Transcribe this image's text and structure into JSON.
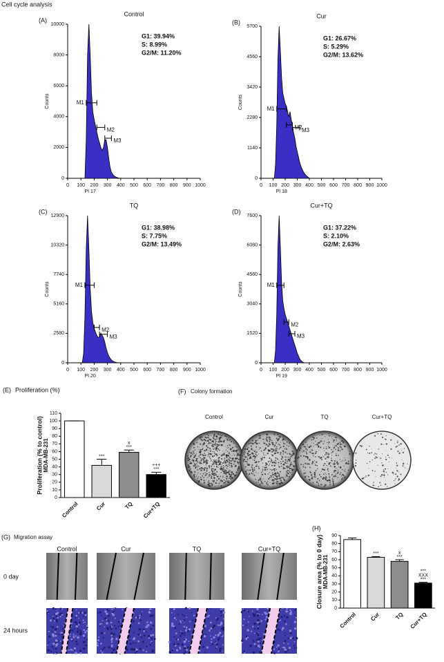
{
  "title": "Cell cycle analysis",
  "chart_data": [
    {
      "type": "area",
      "panel": "(A)",
      "title": "Control",
      "xlabel": "PI 17",
      "ylabel": "Counts",
      "stats": [
        "G1: 39.94%",
        "S: 8.99%",
        "G2/M: 11.20%"
      ],
      "color": "#3a2fc4",
      "x": [
        130,
        140,
        150,
        160,
        170,
        180,
        190,
        200,
        210,
        220,
        230,
        240,
        250,
        260,
        270,
        280,
        290,
        300,
        310,
        320,
        330,
        340,
        350,
        360,
        370,
        380,
        390,
        400
      ],
      "values": [
        0,
        2500,
        8000,
        10000,
        8000,
        5500,
        4300,
        3800,
        3400,
        3000,
        2600,
        2300,
        2000,
        1800,
        2000,
        2500,
        2500,
        2000,
        1300,
        700,
        400,
        250,
        150,
        100,
        60,
        30,
        10,
        0
      ],
      "gates": [
        {
          "label": "M1",
          "xlim": [
            140,
            220
          ],
          "y": 4900
        },
        {
          "label": "M2",
          "xlim": [
            220,
            280
          ],
          "y": 3300
        },
        {
          "label": "M3",
          "xlim": [
            280,
            330
          ],
          "y": 2600
        }
      ],
      "xlim": [
        0,
        1000
      ],
      "xticks": [
        0,
        100,
        200,
        300,
        400,
        500,
        600,
        700,
        800,
        900,
        1000
      ],
      "ylim": [
        0,
        10000
      ],
      "yticks": [
        0,
        2000,
        4000,
        6000,
        8000,
        10000
      ]
    },
    {
      "type": "area",
      "panel": "(B)",
      "title": "Cur",
      "xlabel": "PI 18",
      "ylabel": "Counts",
      "stats": [
        "G1: 26.67%",
        "S: 5.29%",
        "G2/M: 13.62%"
      ],
      "color": "#3a2fc4",
      "x": [
        110,
        120,
        130,
        140,
        150,
        160,
        170,
        180,
        190,
        200,
        210,
        220,
        230,
        240,
        250,
        260,
        270,
        280,
        290,
        300,
        310,
        320,
        330,
        340,
        350,
        360,
        370,
        380,
        390,
        400
      ],
      "values": [
        0,
        500,
        2000,
        4500,
        5700,
        4800,
        3800,
        3200,
        3000,
        2800,
        2700,
        2500,
        2300,
        2500,
        2200,
        2000,
        1700,
        1500,
        1200,
        1000,
        800,
        600,
        450,
        350,
        250,
        180,
        120,
        80,
        40,
        0
      ],
      "gates": [
        {
          "label": "M1",
          "xlim": [
            130,
            210
          ],
          "y": 2600
        },
        {
          "label": "M2",
          "xlim": [
            210,
            260
          ],
          "y": 2000
        },
        {
          "label": "M3",
          "xlim": [
            260,
            320
          ],
          "y": 1900
        }
      ],
      "xlim": [
        0,
        1000
      ],
      "xticks": [
        0,
        100,
        200,
        300,
        400,
        500,
        600,
        700,
        800,
        900,
        1000
      ],
      "ylim": [
        0,
        5700
      ],
      "yticks": [
        0,
        1140,
        2280,
        3420,
        4560,
        5700
      ]
    },
    {
      "type": "area",
      "panel": "(C)",
      "title": "TQ",
      "xlabel": "PI 20",
      "ylabel": "Counts",
      "stats": [
        "G1: 38.98%",
        "S: 7.75%",
        "G2/M: 13.49%"
      ],
      "color": "#3a2fc4",
      "x": [
        110,
        120,
        130,
        140,
        150,
        160,
        170,
        180,
        190,
        200,
        210,
        220,
        230,
        240,
        250,
        260,
        270,
        280,
        290,
        300,
        310,
        320,
        330,
        340,
        350,
        360,
        370,
        380
      ],
      "values": [
        0,
        800,
        4000,
        10000,
        12900,
        10000,
        6500,
        4500,
        3500,
        3000,
        2700,
        2400,
        2200,
        2300,
        2600,
        2400,
        2200,
        1800,
        1300,
        900,
        600,
        400,
        250,
        150,
        90,
        50,
        20,
        0
      ],
      "gates": [
        {
          "label": "M1",
          "xlim": [
            130,
            200
          ],
          "y": 6800
        },
        {
          "label": "M2",
          "xlim": [
            200,
            240
          ],
          "y": 3100
        },
        {
          "label": "M3",
          "xlim": [
            240,
            300
          ],
          "y": 2500
        }
      ],
      "xlim": [
        0,
        1000
      ],
      "xticks": [
        0,
        100,
        200,
        300,
        400,
        500,
        600,
        700,
        800,
        900,
        1000
      ],
      "ylim": [
        0,
        12900
      ],
      "yticks": [
        0,
        2580,
        5160,
        7740,
        10320,
        12900
      ]
    },
    {
      "type": "area",
      "panel": "(D)",
      "title": "Cur+TQ",
      "xlabel": "PI 19",
      "ylabel": "Counts",
      "stats": [
        "G1: 37.22%",
        "S: 2.10%",
        "G2/M: 2.63%"
      ],
      "color": "#3a2fc4",
      "x": [
        110,
        120,
        130,
        140,
        150,
        160,
        170,
        180,
        190,
        200,
        210,
        220,
        230,
        240,
        250,
        260,
        270,
        280,
        290,
        300,
        310,
        320,
        330,
        340,
        350,
        360
      ],
      "values": [
        0,
        600,
        2500,
        6000,
        7600,
        6000,
        4200,
        3200,
        2800,
        2500,
        2300,
        2100,
        1900,
        1700,
        1500,
        1300,
        1100,
        900,
        700,
        500,
        350,
        200,
        120,
        60,
        20,
        0
      ],
      "gates": [
        {
          "label": "M1",
          "xlim": [
            130,
            190
          ],
          "y": 4000
        },
        {
          "label": "M2",
          "xlim": [
            190,
            230
          ],
          "y": 2100
        },
        {
          "label": "M3",
          "xlim": [
            230,
            280
          ],
          "y": 1500
        }
      ],
      "xlim": [
        0,
        1000
      ],
      "xticks": [
        0,
        100,
        200,
        300,
        400,
        500,
        600,
        700,
        800,
        900,
        1000
      ],
      "ylim": [
        0,
        7600
      ],
      "yticks": [
        0,
        1520,
        3040,
        4560,
        6080,
        7600
      ]
    },
    {
      "type": "bar",
      "panel": "(E)",
      "title": "Proliferation (%)",
      "ylabel": [
        "Proliferation (% to control)",
        "MDA-MB-231"
      ],
      "categories": [
        "Control",
        "Cur",
        "TQ",
        "Cur+TQ"
      ],
      "values": [
        100,
        42,
        59,
        30
      ],
      "errors": [
        0,
        8,
        3,
        3
      ],
      "colors": [
        "#ffffff",
        "#d9d9d9",
        "#8c8c8c",
        "#000000"
      ],
      "annotations": [
        null,
        [
          "***"
        ],
        [
          "x",
          "***"
        ],
        [
          "+++",
          "***"
        ]
      ],
      "ylim": [
        0,
        110
      ],
      "yticks": [
        0,
        10,
        20,
        30,
        40,
        50,
        60,
        70,
        80,
        90,
        100,
        110
      ]
    },
    {
      "type": "bar",
      "panel": "(H)",
      "ylabel": [
        "Closure area (% to 0 day)",
        "MDA-MB-231"
      ],
      "categories": [
        "Control",
        "Cur",
        "TQ",
        "Cur+TQ"
      ],
      "values": [
        85,
        63,
        58,
        31
      ],
      "errors": [
        2,
        1,
        2,
        1
      ],
      "colors": [
        "#ffffff",
        "#d9d9d9",
        "#8c8c8c",
        "#000000"
      ],
      "annotations": [
        null,
        [
          "***"
        ],
        [
          "x",
          "***"
        ],
        [
          "***",
          "XXX",
          "***"
        ]
      ],
      "ylim": [
        0,
        90
      ],
      "yticks": [
        0,
        10,
        20,
        30,
        40,
        50,
        60,
        70,
        80,
        90
      ]
    }
  ],
  "colony_formation": {
    "panel": "(F)",
    "title": "Colony formation",
    "labels": [
      "Control",
      "Cur",
      "TQ",
      "Cur+TQ"
    ]
  },
  "migration_assay": {
    "panel": "(G)",
    "title": "Migration assay",
    "columns": [
      "Control",
      "Cur",
      "TQ",
      "Cur+TQ"
    ],
    "rows": [
      "0 day",
      "24 hours"
    ]
  }
}
